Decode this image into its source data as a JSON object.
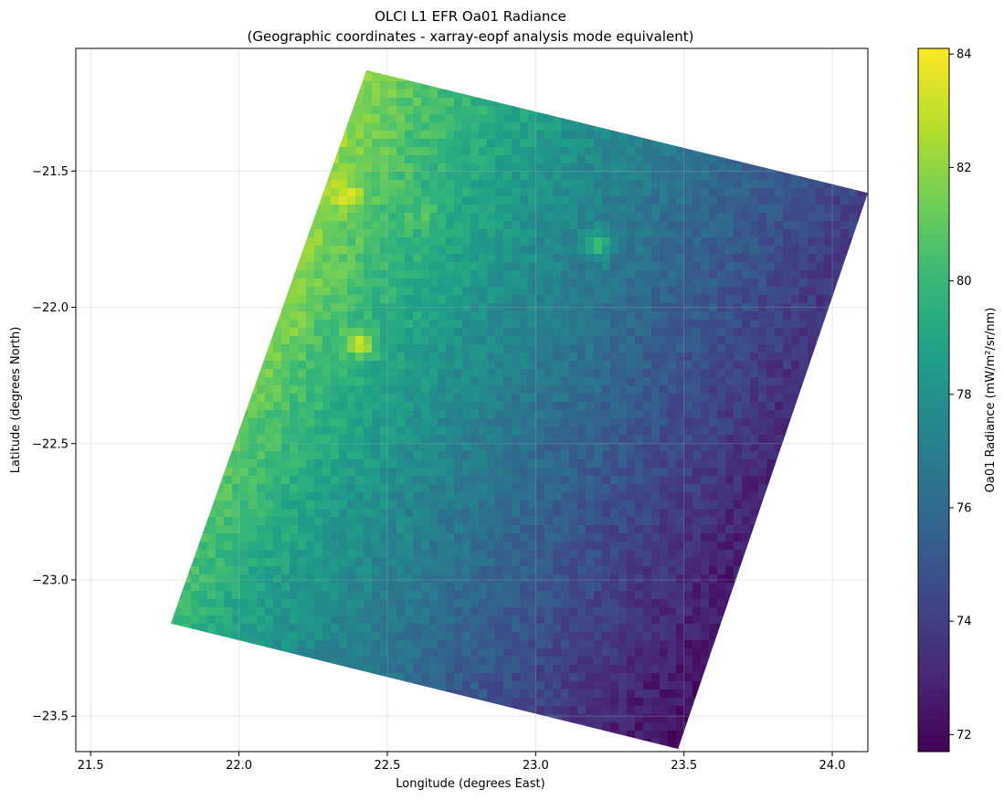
{
  "chart_data": {
    "type": "heatmap",
    "title": "OLCI L1 EFR Oa01 Radiance",
    "subtitle": "(Geographic coordinates - xarray-eopf analysis mode equivalent)",
    "xlabel": "Longitude (degrees East)",
    "ylabel": "Latitude (degrees North)",
    "xlim": [
      21.45,
      24.12
    ],
    "ylim": [
      -23.63,
      -21.05
    ],
    "x_ticks": [
      21.5,
      22.0,
      22.5,
      23.0,
      23.5,
      24.0
    ],
    "x_tick_labels": [
      "21.5",
      "22.0",
      "22.5",
      "23.0",
      "23.5",
      "24.0"
    ],
    "y_ticks": [
      -21.5,
      -22.0,
      -22.5,
      -23.0,
      -23.5
    ],
    "y_tick_labels": [
      "−21.5",
      "−22.0",
      "−22.5",
      "−23.0",
      "−23.5"
    ],
    "grid": true,
    "colormap": "viridis",
    "colorbar": {
      "label": "Oa01 Radiance (mW/m²/sr/nm)",
      "range": [
        71.7,
        84.1
      ],
      "ticks": [
        72,
        74,
        76,
        78,
        80,
        82,
        84
      ],
      "tick_labels": [
        "72",
        "74",
        "76",
        "78",
        "80",
        "82",
        "84"
      ]
    },
    "swath_corners": {
      "north": {
        "lon": 22.43,
        "lat": -21.13
      },
      "east": {
        "lon": 24.12,
        "lat": -21.58
      },
      "south": {
        "lon": 23.48,
        "lat": -23.62
      },
      "west": {
        "lon": 21.77,
        "lat": -23.16
      }
    },
    "radiance_field": {
      "corner_values": {
        "north": 81.0,
        "east": 74.0,
        "south": 72.0,
        "west": 79.5
      },
      "bright_spots": [
        {
          "lon": 22.36,
          "lat": -21.59,
          "value": 83.8
        },
        {
          "lon": 22.41,
          "lat": -22.13,
          "value": 83.0
        },
        {
          "lon": 22.17,
          "lat": -22.05,
          "value": 81.8
        },
        {
          "lon": 22.62,
          "lat": -21.67,
          "value": 80.8
        },
        {
          "lon": 23.21,
          "lat": -21.77,
          "value": 80.6
        }
      ]
    }
  }
}
